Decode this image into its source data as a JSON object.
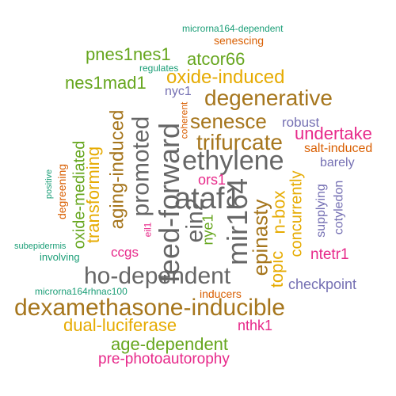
{
  "colors": {
    "teal": "#1b9e77",
    "orange": "#d95f02",
    "purple": "#7570b3",
    "magenta": "#e7298a",
    "green": "#66a61e",
    "gold": "#e6ab02",
    "brown": "#a6761d",
    "gray": "#666666"
  },
  "words": [
    {
      "text": "microrna164-dependent",
      "color": "teal",
      "vertical": false
    },
    {
      "text": "senescing",
      "color": "orange",
      "vertical": false
    },
    {
      "text": "pnes1nes1",
      "color": "green",
      "vertical": false
    },
    {
      "text": "atcor66",
      "color": "green",
      "vertical": false
    },
    {
      "text": "regulates",
      "color": "teal",
      "vertical": false
    },
    {
      "text": "oxide-induced",
      "color": "gold",
      "vertical": false
    },
    {
      "text": "nes1mad1",
      "color": "green",
      "vertical": false
    },
    {
      "text": "nyc1",
      "color": "purple",
      "vertical": false
    },
    {
      "text": "degenerative",
      "color": "brown",
      "vertical": false
    },
    {
      "text": "senesce",
      "color": "brown",
      "vertical": false
    },
    {
      "text": "robust",
      "color": "purple",
      "vertical": false
    },
    {
      "text": "undertake",
      "color": "magenta",
      "vertical": false
    },
    {
      "text": "trifurcate",
      "color": "brown",
      "vertical": false
    },
    {
      "text": "salt-induced",
      "color": "orange",
      "vertical": false
    },
    {
      "text": "ethylene",
      "color": "gray",
      "vertical": false
    },
    {
      "text": "barely",
      "color": "purple",
      "vertical": false
    },
    {
      "text": "ataf1",
      "color": "gray",
      "vertical": false
    },
    {
      "text": "ors1",
      "color": "magenta",
      "vertical": false
    },
    {
      "text": "ho-dependent",
      "color": "gray",
      "vertical": false
    },
    {
      "text": "ccgs",
      "color": "magenta",
      "vertical": false
    },
    {
      "text": "ntetr1",
      "color": "magenta",
      "vertical": false
    },
    {
      "text": "checkpoint",
      "color": "purple",
      "vertical": false
    },
    {
      "text": "subepidermis",
      "color": "teal",
      "vertical": false
    },
    {
      "text": "involving",
      "color": "teal",
      "vertical": false
    },
    {
      "text": "microrna164rhnac100",
      "color": "teal",
      "vertical": false
    },
    {
      "text": "inducers",
      "color": "orange",
      "vertical": false
    },
    {
      "text": "dexamethasone-inducible",
      "color": "brown",
      "vertical": false
    },
    {
      "text": "dual-luciferase",
      "color": "gold",
      "vertical": false
    },
    {
      "text": "nthk1",
      "color": "magenta",
      "vertical": false
    },
    {
      "text": "age-dependent",
      "color": "green",
      "vertical": false
    },
    {
      "text": "pre-photoautorophy",
      "color": "magenta",
      "vertical": false
    },
    {
      "text": "coherent",
      "color": "orange",
      "vertical": true
    },
    {
      "text": "degenerative",
      "color": "brown",
      "vertical": true,
      "skip": true
    },
    {
      "text": "feed-forward",
      "color": "gray",
      "vertical": true
    },
    {
      "text": "promoted",
      "color": "gray",
      "vertical": true
    },
    {
      "text": "ein2",
      "color": "gray",
      "vertical": true
    },
    {
      "text": "mir164",
      "color": "gray",
      "vertical": true
    },
    {
      "text": "aging-induced",
      "color": "brown",
      "vertical": true
    },
    {
      "text": "transforming",
      "color": "gold",
      "vertical": true
    },
    {
      "text": "oxide-mediated",
      "color": "green",
      "vertical": true
    },
    {
      "text": "degreening",
      "color": "orange",
      "vertical": true
    },
    {
      "text": "positive",
      "color": "teal",
      "vertical": true
    },
    {
      "text": "eil1",
      "color": "magenta",
      "vertical": true
    },
    {
      "text": "nye1",
      "color": "green",
      "vertical": true
    },
    {
      "text": "epinasty",
      "color": "brown",
      "vertical": true
    },
    {
      "text": "topic",
      "color": "gold",
      "vertical": true
    },
    {
      "text": "n-box",
      "color": "gold",
      "vertical": true
    },
    {
      "text": "concurrently",
      "color": "gold",
      "vertical": true
    },
    {
      "text": "supplying",
      "color": "purple",
      "vertical": true
    },
    {
      "text": "cotyledon",
      "color": "purple",
      "vertical": true
    }
  ]
}
